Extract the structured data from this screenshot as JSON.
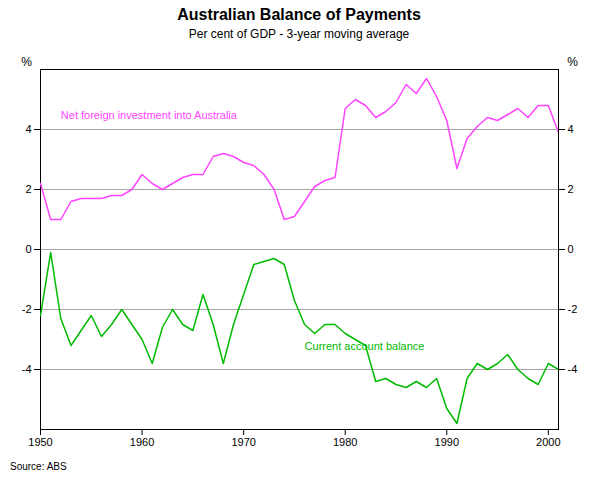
{
  "chart_data": {
    "type": "line",
    "title": "Australian Balance of Payments",
    "subtitle": "Per cent of GDP -  3-year moving average",
    "ylabel": "%",
    "y2label": "%",
    "source": "Source: ABS",
    "xlim": [
      1950,
      2001
    ],
    "ylim": [
      -6,
      6
    ],
    "xticks": [
      1950,
      1960,
      1970,
      1980,
      1990,
      2000
    ],
    "yticks": [
      -4,
      -2,
      0,
      2,
      4
    ],
    "grid": true,
    "x": [
      1950,
      1951,
      1952,
      1953,
      1954,
      1955,
      1956,
      1957,
      1958,
      1959,
      1960,
      1961,
      1962,
      1963,
      1964,
      1965,
      1966,
      1967,
      1968,
      1969,
      1970,
      1971,
      1972,
      1973,
      1974,
      1975,
      1976,
      1977,
      1978,
      1979,
      1980,
      1981,
      1982,
      1983,
      1984,
      1985,
      1986,
      1987,
      1988,
      1989,
      1990,
      1991,
      1992,
      1993,
      1994,
      1995,
      1996,
      1997,
      1998,
      1999,
      2000,
      2001
    ],
    "series": [
      {
        "name": "Net foreign investment into Australia",
        "color": "#FF44FF",
        "annotation": {
          "x": 1952,
          "y": 4.6
        },
        "values": [
          2.2,
          1.0,
          1.0,
          1.6,
          1.7,
          1.7,
          1.7,
          1.8,
          1.8,
          2.0,
          2.5,
          2.2,
          2.0,
          2.2,
          2.4,
          2.5,
          2.5,
          3.1,
          3.2,
          3.1,
          2.9,
          2.8,
          2.5,
          2.0,
          1.0,
          1.1,
          1.6,
          2.1,
          2.3,
          2.4,
          4.7,
          5.0,
          4.8,
          4.4,
          4.6,
          4.9,
          5.5,
          5.2,
          5.7,
          5.1,
          4.3,
          2.7,
          3.7,
          4.1,
          4.4,
          4.3,
          4.5,
          4.7,
          4.4,
          4.8,
          4.8,
          3.9
        ]
      },
      {
        "name": "Current account balance",
        "color": "#00BB00",
        "annotation": {
          "x": 1976,
          "y": -3.1
        },
        "values": [
          -2.2,
          -0.1,
          -2.3,
          -3.2,
          -2.7,
          -2.2,
          -2.9,
          -2.5,
          -2.0,
          -2.5,
          -3.0,
          -3.8,
          -2.6,
          -2.0,
          -2.5,
          -2.7,
          -1.5,
          -2.5,
          -3.8,
          -2.5,
          -1.5,
          -0.5,
          -0.4,
          -0.3,
          -0.5,
          -1.7,
          -2.5,
          -2.8,
          -2.5,
          -2.5,
          -2.8,
          -3.0,
          -3.2,
          -4.4,
          -4.3,
          -4.5,
          -4.6,
          -4.4,
          -4.6,
          -4.3,
          -5.3,
          -5.8,
          -4.3,
          -3.8,
          -4.0,
          -3.8,
          -3.5,
          -4.0,
          -4.3,
          -4.5,
          -3.8,
          -4.0
        ]
      }
    ]
  }
}
